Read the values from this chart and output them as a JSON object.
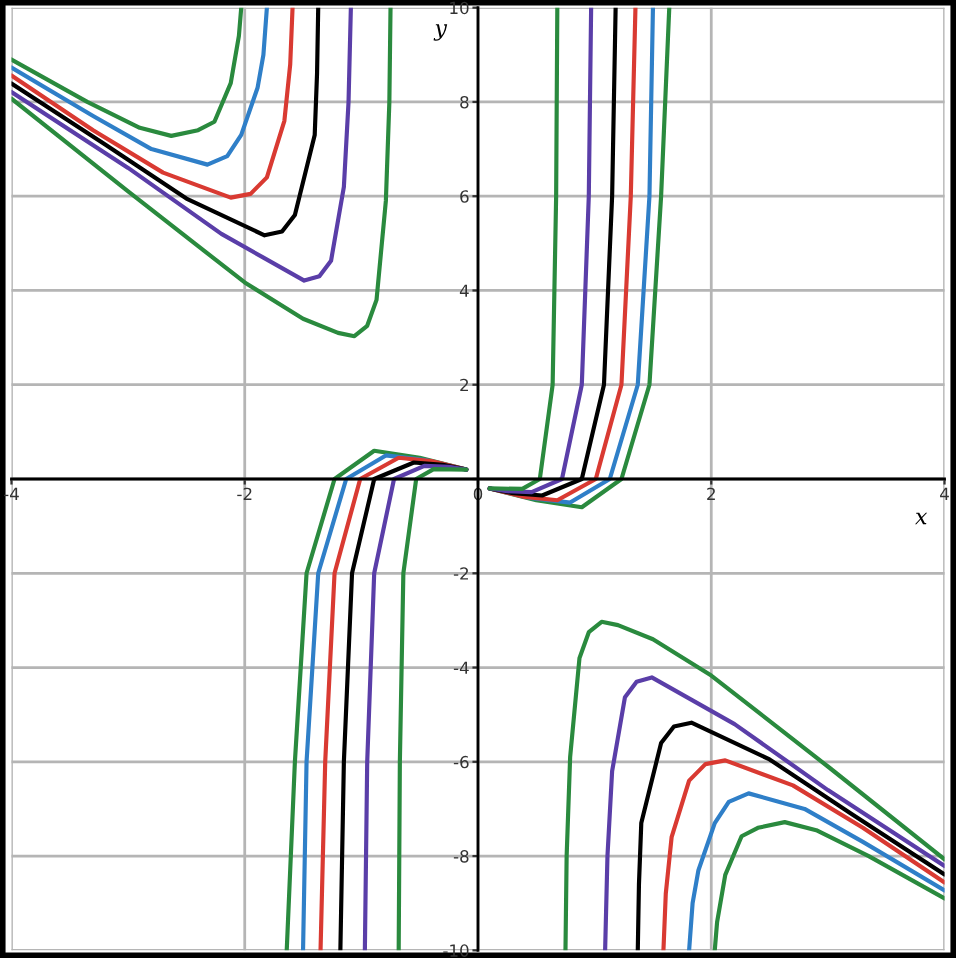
{
  "chart_data": {
    "type": "line",
    "xlabel": "x",
    "ylabel": "y",
    "xlim": [
      -4,
      4
    ],
    "ylim": [
      -10,
      10
    ],
    "xticks": [
      -4,
      -2,
      0,
      2,
      4
    ],
    "yticks": [
      -10,
      -8,
      -6,
      -4,
      -2,
      {
        "value": 0,
        "label": null
      },
      2,
      4,
      6,
      8,
      10
    ],
    "grid": true,
    "line_style": "solid",
    "series": [
      {
        "color": "#2a8a3e",
        "x": [
          -4,
          -3.35,
          -2.9,
          -2.63,
          -2.4,
          -2.26,
          -2.12,
          -2.05,
          -2.03,
          -1.8,
          -1.64,
          -1.57,
          -1.47,
          -1.23,
          -0.89,
          -0.5,
          -0.1,
          0,
          0.1,
          0.5,
          0.89,
          1.23,
          1.47,
          1.57,
          1.64,
          1.8,
          2.03,
          2.05,
          2.12,
          2.26,
          2.4,
          2.63,
          2.9,
          3.35,
          4
        ],
        "values": [
          8.9,
          8.0,
          7.45,
          7.28,
          7.4,
          7.58,
          8.4,
          9.4,
          10,
          null,
          -10,
          -6,
          -2,
          0,
          0.6,
          0.45,
          0.2,
          null,
          -0.2,
          -0.45,
          -0.6,
          0,
          2,
          6,
          10,
          null,
          -10,
          -9.4,
          -8.4,
          -7.58,
          -7.4,
          -7.28,
          -7.45,
          -8.0,
          -8.9
        ]
      },
      {
        "color": "#2f7fc8",
        "x": [
          -4,
          -3.3,
          -2.8,
          -2.32,
          -2.15,
          -2.03,
          -1.89,
          -1.84,
          -1.81,
          -1.65,
          -1.5,
          -1.47,
          -1.37,
          -1.13,
          -0.79,
          -0.45,
          -0.1,
          0,
          0.1,
          0.45,
          0.79,
          1.13,
          1.37,
          1.47,
          1.5,
          1.65,
          1.81,
          1.84,
          1.89,
          2.03,
          2.15,
          2.32,
          2.8,
          3.3,
          4
        ],
        "values": [
          8.73,
          7.7,
          7.0,
          6.67,
          6.85,
          7.3,
          8.3,
          9.0,
          10,
          null,
          -10,
          -6,
          -2,
          0,
          0.5,
          0.4,
          0.2,
          null,
          -0.2,
          -0.4,
          -0.5,
          0,
          2,
          6,
          10,
          null,
          -10,
          -9.0,
          -8.3,
          -7.3,
          -6.85,
          -6.67,
          -7.0,
          -7.7,
          -8.73
        ]
      },
      {
        "color": "#d93a32",
        "x": [
          -4,
          -3.3,
          -2.7,
          -2.12,
          -1.95,
          -1.81,
          -1.66,
          -1.61,
          -1.59,
          -1.47,
          -1.35,
          -1.31,
          -1.23,
          -1.01,
          -0.68,
          -0.4,
          -0.1,
          0,
          0.1,
          0.4,
          0.68,
          1.01,
          1.23,
          1.31,
          1.35,
          1.47,
          1.59,
          1.61,
          1.66,
          1.81,
          1.95,
          2.12,
          2.7,
          3.3,
          4
        ],
        "values": [
          8.56,
          7.4,
          6.5,
          5.97,
          6.05,
          6.4,
          7.6,
          8.8,
          10,
          null,
          -10,
          -6,
          -2,
          0,
          0.45,
          0.38,
          0.2,
          null,
          -0.2,
          -0.38,
          -0.45,
          0,
          2,
          6,
          10,
          null,
          -10,
          -8.8,
          -7.6,
          -6.4,
          -6.05,
          -5.97,
          -6.5,
          -7.4,
          -8.56
        ]
      },
      {
        "color": "#000000",
        "x": [
          -4,
          -3.2,
          -2.5,
          -1.83,
          -1.68,
          -1.57,
          -1.4,
          -1.38,
          -1.37,
          -1.27,
          -1.18,
          -1.15,
          -1.08,
          -0.89,
          -0.55,
          -0.3,
          -0.1,
          0,
          0.1,
          0.3,
          0.55,
          0.89,
          1.08,
          1.15,
          1.18,
          1.27,
          1.37,
          1.38,
          1.4,
          1.57,
          1.68,
          1.83,
          2.5,
          3.2,
          4
        ],
        "values": [
          8.39,
          7.1,
          5.95,
          5.17,
          5.25,
          5.6,
          7.3,
          8.6,
          10,
          null,
          -10,
          -6,
          -2,
          0,
          0.35,
          0.3,
          0.2,
          null,
          -0.2,
          -0.3,
          -0.35,
          0,
          2,
          6,
          10,
          null,
          -10,
          -8.6,
          -7.3,
          -5.6,
          -5.25,
          -5.17,
          -5.95,
          -7.1,
          -8.39
        ]
      },
      {
        "color": "#5a3ea8",
        "x": [
          -4,
          -3,
          -2.2,
          -1.49,
          -1.36,
          -1.26,
          -1.15,
          -1.11,
          -1.09,
          -1.03,
          -0.97,
          -0.95,
          -0.89,
          -0.72,
          -0.46,
          -0.25,
          -0.1,
          0,
          0.1,
          0.25,
          0.46,
          0.72,
          0.89,
          0.95,
          0.97,
          1.03,
          1.09,
          1.11,
          1.15,
          1.26,
          1.36,
          1.49,
          2.2,
          3,
          4
        ],
        "values": [
          8.21,
          6.6,
          5.2,
          4.21,
          4.3,
          4.63,
          6.2,
          8.0,
          10,
          null,
          -10,
          -6,
          -2,
          0,
          0.28,
          0.26,
          0.2,
          null,
          -0.2,
          -0.26,
          -0.28,
          0,
          2,
          6,
          10,
          null,
          -10,
          -8.0,
          -6.2,
          -4.63,
          -4.3,
          -4.21,
          -5.2,
          -6.6,
          -8.21
        ]
      },
      {
        "color": "#2a8a3e",
        "x": [
          -4,
          -3,
          -2,
          -1.5,
          -1.2,
          -1.06,
          -0.95,
          -0.87,
          -0.79,
          -0.76,
          -0.75,
          -0.71,
          -0.68,
          -0.67,
          -0.64,
          -0.53,
          -0.38,
          -0.1,
          0,
          0.1,
          0.38,
          0.53,
          0.64,
          0.67,
          0.68,
          0.71,
          0.75,
          0.76,
          0.79,
          0.87,
          0.95,
          1.06,
          1.2,
          1.5,
          2,
          3,
          4
        ],
        "values": [
          8.07,
          6.1,
          4.17,
          3.4,
          3.1,
          3.03,
          3.25,
          3.8,
          5.9,
          8.0,
          10,
          null,
          -10,
          -6,
          -2,
          0,
          0.21,
          0.2,
          null,
          -0.2,
          -0.21,
          0,
          2,
          6,
          10,
          null,
          -10,
          -8.0,
          -5.9,
          -3.8,
          -3.25,
          -3.03,
          -3.1,
          -3.4,
          -4.17,
          -6.1,
          -8.07
        ]
      }
    ]
  }
}
